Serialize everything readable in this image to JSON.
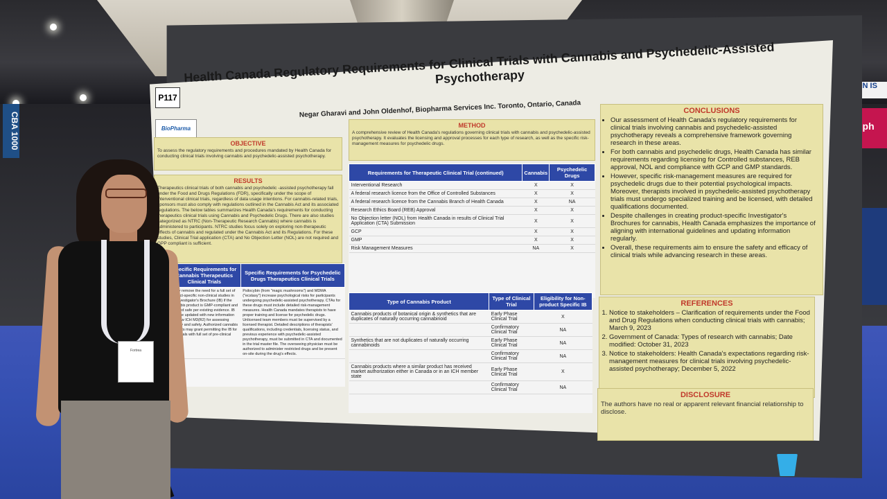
{
  "scene": {
    "left_banner": "CBA 1000",
    "right_sign": "ON IS",
    "right_sign2": "oph"
  },
  "poster": {
    "id": "P117",
    "title": "Health Canada Regulatory Requirements for Clinical Trials with Cannabis and Psychedelic-Assisted Psychotherapy",
    "authors": "Negar Gharavi and John Oldenhof, Biopharma Services Inc. Toronto, Ontario, Canada",
    "logo": "BioPharma",
    "objective": {
      "heading": "OBJECTIVE",
      "text": "To assess the regulatory requirements and procedures mandated by Health Canada for conducting clinical trials involving cannabis and psychedelic-assisted psychotherapy."
    },
    "results": {
      "heading": "RESULTS",
      "text": "Therapeutics clinical trials of both cannabis and psychedelic -assisted psychotherapy fall under the Food and Drugs Regulations (FDR), specifically under the scope of interventional clinical trials, regardless of data usage intentions. For cannabis-related trials, sponsors must also comply with regulations outlined in the Cannabis Act and its associated regulations. The below tables summarizes Health Canada's requirements for conducting therapeutics clinical trials using Cannabis and Psychedelic Drugs. There are also studies categorized as NTRC (Non-Therapeutic Research Cannabis) where cannabis is administered to participants. NTRC studies focus solely on exploring non-therapeutic effects of cannabis and regulated under the Cannabis Act and its Regulations. For these studies, Clinical Trial application (CTA) and No Objection Letter (NOL) are not required and GPP compliant is sufficient."
    },
    "method": {
      "heading": "METHOD",
      "text": "A comprehensive review of Health Canada's regulations governing clinical trials with cannabis and psychedelic-assisted psychotherapy. It evaluates the licensing and approval processes for each type of research, as well as the specific risk-management measures for psychedelic drugs."
    },
    "table1": {
      "headers": [
        "Requirements for Therapeutic Clinical Trial (continued)",
        "Cannabis",
        "Psychedelic Drugs"
      ],
      "rows": [
        [
          "Interventional Research",
          "X",
          "X"
        ],
        [
          "A federal research licence from the Office of Controlled Substances",
          "X",
          "X"
        ],
        [
          "A federal research licence from the Cannabis Branch of Health Canada",
          "X",
          "NA"
        ],
        [
          "Research Ethics Board (REB) Approval",
          "X",
          "X"
        ],
        [
          "No Objection letter (NOL) from Health Canada in results of Clinical Trial Application (CTA) Submission",
          "X",
          "X"
        ],
        [
          "GCP",
          "X",
          "X"
        ],
        [
          "GMP",
          "X",
          "X"
        ],
        [
          "Risk Management Measures",
          "NA",
          "X"
        ]
      ]
    },
    "table2": {
      "headers": [
        "Type of Cannabis Product",
        "Type of Clinical Trial",
        "Eligibility for Non-product Specific IB"
      ],
      "rows": [
        [
          "Cannabis products of botanical origin & synthetics that are duplicates of naturally occurring cannabinoid",
          "Early Phase Clinical Trial",
          "X"
        ],
        [
          "",
          "Confirmatory Clinical Trial",
          "NA"
        ],
        [
          "Synthetics that are not duplicates of naturally occurring cannabinoids",
          "Early Phase Clinical Trial",
          "NA"
        ],
        [
          "",
          "Confirmatory Clinical Trial",
          "NA"
        ],
        [
          "Cannabis products where a similar product has received market authorization either in Canada or in an ICH member state",
          "Early Phase Clinical Trial",
          "X"
        ],
        [
          "",
          "Confirmatory Clinical Trial",
          "NA"
        ]
      ]
    },
    "table3": {
      "headers": [
        "Specific Requirements for Cannabis Therapeutics Clinical Trials",
        "Specific Requirements for Psychedelic Drugs Therapeutics Clinical Trials"
      ],
      "left": "It may remove the need for a full set of product-specific non-clinical studies in the Investigator's Brochure (IB) if the cannabis product is GMP-compliant and deemed safe per existing evidence. IB must be updated with new information to follow ICH M3(R2) for assessing efficacy and safety. Authorized cannabis products may grant permitting the IB for early trials with full set of pre-clinical studies.",
      "right": "Psilocybin (from \"magic mushrooms\") and MDMA (\"ecstasy\") increase psychological risks for participants undergoing psychedelic-assisted psychotherapy. CTAs for these drugs must include detailed risk-management measures. Health Canada mandates therapists to have proper training and license for psychedelic drugs. Unlicensed team members must be supervised by a licensed therapist. Detailed descriptions of therapists' qualifications, including credentials, licensing status, and previous experience with psychedelic-assisted psychotherapy, must be submitted in CTA and documented in the trial master file. The overseeing physician must be authorized to administer restricted drugs and be present on-site during the drug's effects."
    },
    "conclusions": {
      "heading": "CONCLUSIONS",
      "items": [
        "Our assessment of Health Canada's regulatory requirements for clinical trials involving cannabis and psychedelic-assisted psychotherapy reveals a comprehensive framework governing research in these areas.",
        "For both cannabis and psychedelic drugs, Health Canada has similar requirements regarding licensing for Controlled substances, REB approval, NOL and compliance with GCP and GMP standards.",
        "However, specific risk-management measures are required for psychedelic drugs due to their potential psychological impacts. Moreover, therapists involved in psychedelic-assisted psychotherapy trials must undergo specialized training and be licensed, with detailed qualifications documented.",
        "Despite challenges in creating product-specific Investigator's Brochures for cannabis, Health Canada emphasizes the importance of aligning with international guidelines and updating information regularly.",
        "Overall, these requirements aim to ensure the safety and efficacy of clinical trials while advancing research in these areas."
      ]
    },
    "references": {
      "heading": "REFERENCES",
      "items": [
        "Notice to stakeholders – Clarification of requirements under the Food and Drug Regulations when conducting clinical trials with cannabis; March 9, 2023",
        "Government of Canada: Types of research with cannabis; Date modified: October 31, 2023",
        "Notice to stakeholders: Health Canada's expectations regarding risk-management measures for clinical trials involving psychedelic-assisted psychotherapy; December 5, 2022"
      ]
    },
    "disclosure": {
      "heading": "DISCLOSURE",
      "text": "The authors have no real or apparent relevant financial relationship to disclose."
    }
  },
  "person": {
    "lanyard_text": "Fortrea"
  }
}
